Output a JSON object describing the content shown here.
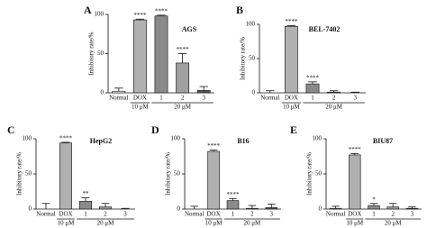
{
  "chart_data": [
    {
      "type": "bar",
      "panel": "A",
      "title": "AGS",
      "ylabel": "Inhibitory rate/%",
      "categories": [
        "Normal",
        "DOX",
        "1",
        "2",
        "3"
      ],
      "groups": [
        "10 μM",
        "20 μM"
      ],
      "values": [
        2,
        93,
        98,
        38,
        3
      ],
      "errors": [
        4,
        1,
        1,
        12,
        5
      ],
      "annotations": [
        null,
        "****",
        "****",
        "****",
        null
      ],
      "colors": [
        "#ffffff",
        "#b0b0b0",
        "#8a8a8a",
        "#a0a0a0",
        "#555555"
      ],
      "ylim": [
        0,
        100
      ],
      "yticks": [
        0,
        50,
        100
      ]
    },
    {
      "type": "bar",
      "panel": "B",
      "title": "BEL-7402",
      "ylabel": "Inhibitory rate/%",
      "categories": [
        "Normal",
        "DOX",
        "1",
        "2",
        "3"
      ],
      "groups": [
        "10 μM",
        "20 μM"
      ],
      "values": [
        0,
        97,
        13,
        1,
        0
      ],
      "errors": [
        3,
        1,
        3,
        2,
        1
      ],
      "annotations": [
        null,
        "****",
        "****",
        null,
        null
      ],
      "colors": [
        "#ffffff",
        "#b0b0b0",
        "#8a8a8a",
        "#a0a0a0",
        "#555555"
      ],
      "ylim": [
        0,
        100
      ],
      "yticks": [
        0,
        50,
        100
      ]
    },
    {
      "type": "bar",
      "panel": "C",
      "title": "HepG2",
      "ylabel": "Inhibitory rate/%",
      "categories": [
        "Normal",
        "DOX",
        "1",
        "2",
        "3"
      ],
      "groups": [
        "10 μM",
        "20 μM"
      ],
      "values": [
        0,
        94,
        11,
        3,
        0
      ],
      "errors": [
        8,
        1,
        5,
        5,
        1
      ],
      "annotations": [
        null,
        "****",
        "**",
        null,
        null
      ],
      "colors": [
        "#ffffff",
        "#b0b0b0",
        "#8a8a8a",
        "#a0a0a0",
        "#555555"
      ],
      "ylim": [
        0,
        100
      ],
      "yticks": [
        0,
        50,
        100
      ]
    },
    {
      "type": "bar",
      "panel": "D",
      "title": "B16",
      "ylabel": "Inhibitory rate/%",
      "categories": [
        "Normal",
        "DOX",
        "1",
        "2",
        "3"
      ],
      "groups": [
        "10 μM",
        "20 μM"
      ],
      "values": [
        0,
        82,
        12,
        1,
        2
      ],
      "errors": [
        4,
        2,
        3,
        4,
        5
      ],
      "annotations": [
        null,
        "****",
        "****",
        null,
        null
      ],
      "colors": [
        "#ffffff",
        "#b0b0b0",
        "#8a8a8a",
        "#a0a0a0",
        "#555555"
      ],
      "ylim": [
        0,
        100
      ],
      "yticks": [
        0,
        50,
        100
      ]
    },
    {
      "type": "bar",
      "panel": "E",
      "title": "BIU87",
      "ylabel": "Inhibitory rate/%",
      "categories": [
        "Normal",
        "DOX",
        "1",
        "2",
        "3"
      ],
      "groups": [
        "10 μM",
        "20 μM"
      ],
      "values": [
        1,
        77,
        5,
        3,
        1
      ],
      "errors": [
        3,
        2,
        3,
        5,
        2
      ],
      "annotations": [
        null,
        "****",
        "*",
        null,
        null
      ],
      "colors": [
        "#ffffff",
        "#b0b0b0",
        "#8a8a8a",
        "#a0a0a0",
        "#555555"
      ],
      "ylim": [
        0,
        100
      ],
      "yticks": [
        0,
        50,
        100
      ]
    }
  ]
}
